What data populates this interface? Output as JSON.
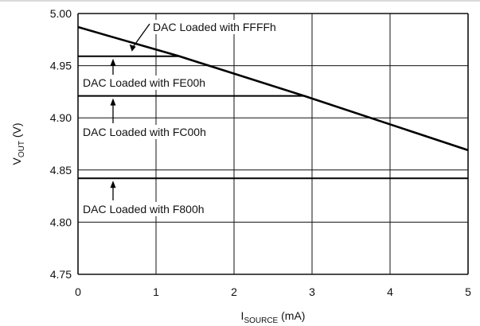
{
  "chart_data": {
    "type": "line",
    "xlabel": "I",
    "xlabel_sub": "SOURCE",
    "xlabel_unit": " (mA)",
    "ylabel": "V",
    "ylabel_sub": "OUT",
    "ylabel_unit": " (V)",
    "xlim": [
      0,
      5
    ],
    "ylim": [
      4.75,
      5.0
    ],
    "xticks": [
      "0",
      "1",
      "2",
      "3",
      "4",
      "5"
    ],
    "yticks": [
      "5.00",
      "4.95",
      "4.90",
      "4.85",
      "4.80",
      "4.75"
    ],
    "grid": true,
    "series": [
      {
        "name": "DAC Loaded with FFFFh",
        "x": [
          0,
          1.3,
          2.9,
          5.0
        ],
        "y": [
          4.987,
          4.959,
          4.921,
          4.869
        ]
      },
      {
        "name": "DAC Loaded with FE00h",
        "x": [
          0,
          1.3,
          2.9,
          5.0
        ],
        "y": [
          4.959,
          4.959,
          4.921,
          4.869
        ]
      },
      {
        "name": "DAC Loaded with FC00h",
        "x": [
          0,
          2.9,
          5.0
        ],
        "y": [
          4.921,
          4.921,
          4.869
        ]
      },
      {
        "name": "DAC Loaded with F800h",
        "x": [
          0,
          5.0
        ],
        "y": [
          4.842,
          4.842
        ]
      }
    ],
    "annotations": [
      {
        "text": "DAC Loaded with FFFFh"
      },
      {
        "text": "DAC Loaded with FE00h"
      },
      {
        "text": "DAC Loaded with FC00h"
      },
      {
        "text": "DAC Loaded with F800h"
      }
    ]
  }
}
